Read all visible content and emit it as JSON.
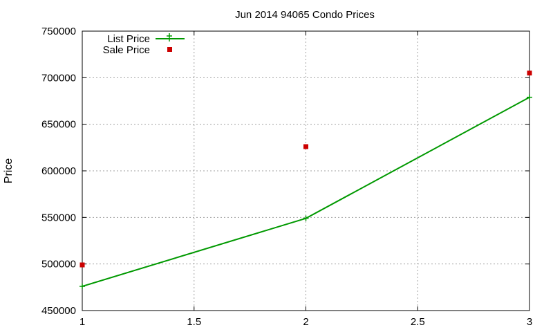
{
  "chart_data": {
    "type": "line",
    "title": "Jun 2014 94065 Condo Prices",
    "xlabel": "",
    "ylabel": "Price",
    "xlim": [
      1,
      3
    ],
    "ylim": [
      450000,
      750000
    ],
    "xticks": [
      1,
      1.5,
      2,
      2.5,
      3
    ],
    "xtick_labels": [
      "1",
      "1.5",
      "2",
      "2.5",
      "3"
    ],
    "yticks": [
      450000,
      500000,
      550000,
      600000,
      650000,
      700000,
      750000
    ],
    "ytick_labels": [
      "450000",
      "500000",
      "550000",
      "600000",
      "650000",
      "700000",
      "750000"
    ],
    "grid": true,
    "legend_position": "top-left",
    "series": [
      {
        "name": "List Price",
        "style": "line-with-plus-markers",
        "color": "#009900",
        "x": [
          1,
          2,
          3
        ],
        "values": [
          476000,
          549000,
          679000
        ]
      },
      {
        "name": "Sale Price",
        "style": "square-markers",
        "color": "#cc0000",
        "x": [
          1,
          2,
          3
        ],
        "values": [
          499000,
          626000,
          705000
        ]
      }
    ]
  }
}
